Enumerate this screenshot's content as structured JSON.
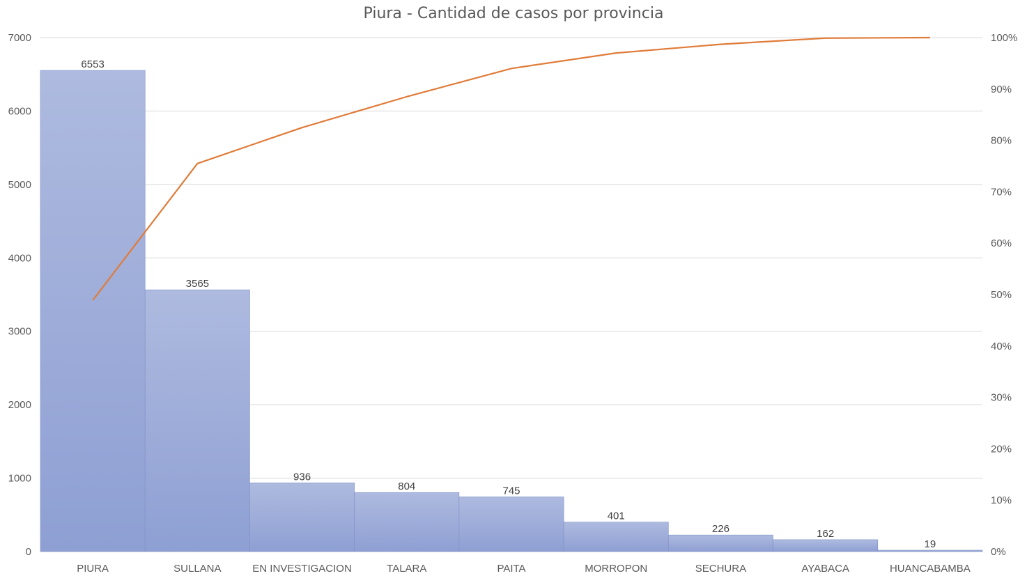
{
  "chart_data": {
    "type": "bar",
    "subtype": "pareto",
    "title": "Piura - Cantidad de casos por provincia",
    "categories": [
      "PIURA",
      "SULLANA",
      "EN INVESTIGACION",
      "TALARA",
      "PAITA",
      "MORROPON",
      "SECHURA",
      "AYABACA",
      "HUANCABAMBA"
    ],
    "series": [
      {
        "type": "bar",
        "values": [
          6553,
          3565,
          936,
          804,
          745,
          401,
          226,
          162,
          19
        ],
        "color": "#8e9fd3"
      },
      {
        "type": "line",
        "axis": "right",
        "values": [
          0.489,
          0.755,
          0.825,
          0.885,
          0.94,
          0.97,
          0.987,
          0.999,
          1.0
        ],
        "color": "#e07b39"
      }
    ],
    "data_labels": [
      "6553",
      "3565",
      "936",
      "804",
      "745",
      "401",
      "226",
      "162",
      "19"
    ],
    "ylim": [
      0,
      7000
    ],
    "y_ticks": [
      0,
      1000,
      2000,
      3000,
      4000,
      5000,
      6000,
      7000
    ],
    "y_tick_labels": [
      "0",
      "1000",
      "2000",
      "3000",
      "4000",
      "5000",
      "6000",
      "7000"
    ],
    "y2lim": [
      0,
      1
    ],
    "y2_ticks": [
      0,
      0.1,
      0.2,
      0.3,
      0.4,
      0.5,
      0.6,
      0.7,
      0.8,
      0.9,
      1.0
    ],
    "y2_tick_labels": [
      "0%",
      "10%",
      "20%",
      "30%",
      "40%",
      "50%",
      "60%",
      "70%",
      "80%",
      "90%",
      "100%"
    ],
    "xlabel": "",
    "ylabel": "",
    "grid": true,
    "legend": "none"
  }
}
